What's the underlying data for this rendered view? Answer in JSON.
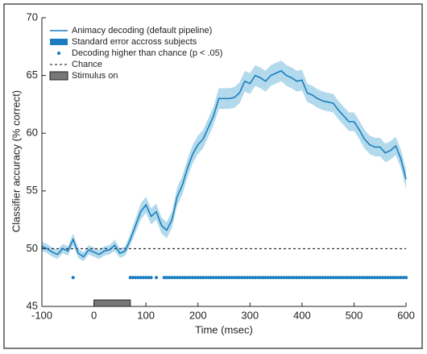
{
  "chart_data": {
    "type": "line",
    "xlabel": "Time (msec)",
    "ylabel": "Classifier accuracy (% correct)",
    "xlim": [
      -100,
      600
    ],
    "ylim": [
      45,
      70
    ],
    "xticks": [
      -100,
      0,
      100,
      200,
      300,
      400,
      500,
      600
    ],
    "yticks": [
      45,
      50,
      55,
      60,
      65,
      70
    ],
    "x": [
      -100,
      -90,
      -80,
      -70,
      -60,
      -50,
      -40,
      -30,
      -20,
      -10,
      0,
      10,
      20,
      30,
      40,
      50,
      60,
      70,
      80,
      90,
      100,
      110,
      120,
      130,
      140,
      150,
      160,
      170,
      180,
      190,
      200,
      210,
      220,
      230,
      240,
      250,
      260,
      270,
      280,
      290,
      300,
      310,
      320,
      330,
      340,
      350,
      360,
      370,
      380,
      390,
      400,
      410,
      420,
      430,
      440,
      450,
      460,
      470,
      480,
      490,
      500,
      510,
      520,
      530,
      540,
      550,
      560,
      570,
      580,
      590,
      600
    ],
    "series": [
      {
        "name": "Animacy decoding (default pipeline)",
        "color": "#1a7dbf",
        "values": [
          50.2,
          50.0,
          49.7,
          49.5,
          50.0,
          49.8,
          50.8,
          49.6,
          49.3,
          49.9,
          49.7,
          49.5,
          49.8,
          49.9,
          50.3,
          49.6,
          49.8,
          50.8,
          52.0,
          53.2,
          53.8,
          52.8,
          53.2,
          52.0,
          51.6,
          52.5,
          54.5,
          55.5,
          57.0,
          58.2,
          59.0,
          59.5,
          60.5,
          61.5,
          63.0,
          63.0,
          63.0,
          63.1,
          63.5,
          64.5,
          64.3,
          65.0,
          64.8,
          64.5,
          65.0,
          65.2,
          65.4,
          65.0,
          64.8,
          64.5,
          64.6,
          63.5,
          63.3,
          63.0,
          62.8,
          62.7,
          62.6,
          62.0,
          61.5,
          61.0,
          61.0,
          60.3,
          59.5,
          59.0,
          58.8,
          58.8,
          58.3,
          58.5,
          58.9,
          57.8,
          56.0
        ]
      },
      {
        "name": "Standard error accross subjects",
        "color": "#b3daec",
        "values": [
          0.4,
          0.4,
          0.4,
          0.4,
          0.4,
          0.4,
          0.5,
          0.4,
          0.4,
          0.4,
          0.4,
          0.4,
          0.4,
          0.4,
          0.5,
          0.4,
          0.4,
          0.5,
          0.6,
          0.7,
          0.7,
          0.7,
          0.7,
          0.7,
          0.7,
          0.7,
          0.8,
          0.8,
          0.8,
          0.8,
          0.8,
          0.8,
          0.8,
          0.8,
          0.9,
          0.9,
          0.9,
          0.9,
          0.9,
          0.9,
          0.9,
          0.9,
          0.9,
          0.9,
          0.9,
          0.9,
          0.9,
          0.9,
          0.9,
          0.9,
          0.9,
          0.8,
          0.8,
          0.8,
          0.8,
          0.8,
          0.8,
          0.8,
          0.8,
          0.8,
          0.8,
          0.8,
          0.8,
          0.8,
          0.8,
          0.8,
          0.8,
          0.8,
          0.8,
          0.8,
          0.8
        ]
      },
      {
        "name": "Decoding higher than chance (p < .05)",
        "color": "#1a7dbf",
        "level": 47.5,
        "x": [
          -40,
          70,
          75,
          80,
          85,
          90,
          95,
          100,
          105,
          110,
          120,
          135,
          140,
          145,
          150,
          155,
          160,
          165,
          170,
          175,
          180,
          185,
          190,
          195,
          200,
          205,
          210,
          215,
          220,
          225,
          230,
          235,
          240,
          245,
          250,
          255,
          260,
          265,
          270,
          275,
          280,
          285,
          290,
          295,
          300,
          305,
          310,
          315,
          320,
          325,
          330,
          335,
          340,
          345,
          350,
          355,
          360,
          365,
          370,
          375,
          380,
          385,
          390,
          395,
          400,
          405,
          410,
          415,
          420,
          425,
          430,
          435,
          440,
          445,
          450,
          455,
          460,
          465,
          470,
          475,
          480,
          485,
          490,
          495,
          500,
          505,
          510,
          515,
          520,
          525,
          530,
          535,
          540,
          545,
          550,
          555,
          560,
          565,
          570,
          575,
          580,
          585,
          590,
          595,
          600
        ]
      },
      {
        "name": "Chance",
        "color": "#000000",
        "level": 50
      },
      {
        "name": "Stimulus on",
        "color": "#777777",
        "range": [
          0,
          70
        ]
      }
    ]
  }
}
